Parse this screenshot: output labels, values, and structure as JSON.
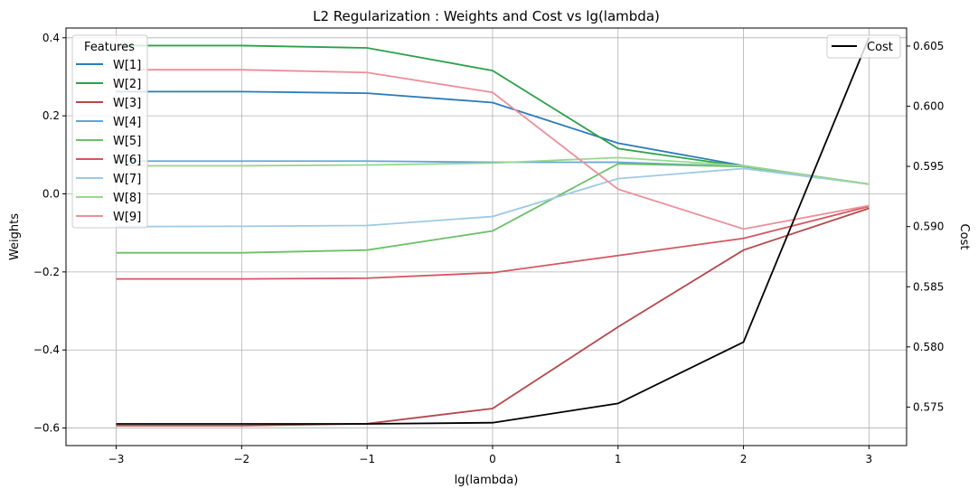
{
  "chart_data": {
    "type": "line",
    "title": "L2 Regularization : Weights and Cost vs lg(lambda)",
    "xlabel": "lg(lambda)",
    "ylabel": "Weights",
    "y2label": "Cost",
    "x": [
      -3,
      -2,
      -1,
      0,
      1,
      2,
      3
    ],
    "xlim": [
      -3.4,
      3.3
    ],
    "ylim": [
      -0.645,
      0.425
    ],
    "y2lim": [
      0.5718,
      0.6065
    ],
    "xticks": [
      -3,
      -2,
      -1,
      0,
      1,
      2,
      3
    ],
    "yticks": [
      -0.6,
      -0.4,
      -0.2,
      0.0,
      0.2,
      0.4
    ],
    "y2ticks": [
      0.575,
      0.58,
      0.585,
      0.59,
      0.595,
      0.6,
      0.605
    ],
    "grid": true,
    "legend_title": "Features",
    "legend_position": "top-left",
    "legend2_position": "top-right",
    "series": [
      {
        "name": "W[1]",
        "color": "#2b7bba",
        "values": [
          0.262,
          0.262,
          0.258,
          0.234,
          0.13,
          0.072,
          0.025
        ]
      },
      {
        "name": "W[2]",
        "color": "#2ca14a",
        "values": [
          0.38,
          0.38,
          0.374,
          0.316,
          0.116,
          0.07,
          0.025
        ]
      },
      {
        "name": "W[3]",
        "color": "#b5474b",
        "values": [
          -0.594,
          -0.594,
          -0.589,
          -0.55,
          -0.341,
          -0.144,
          -0.037
        ]
      },
      {
        "name": "W[4]",
        "color": "#63a6d8",
        "values": [
          0.084,
          0.084,
          0.084,
          0.081,
          0.081,
          0.07,
          0.025
        ]
      },
      {
        "name": "W[5]",
        "color": "#6cc068",
        "values": [
          -0.151,
          -0.151,
          -0.144,
          -0.095,
          0.077,
          0.07,
          0.025
        ]
      },
      {
        "name": "W[6]",
        "color": "#d65560",
        "values": [
          -0.218,
          -0.218,
          -0.216,
          -0.202,
          -0.158,
          -0.114,
          -0.032
        ]
      },
      {
        "name": "W[7]",
        "color": "#9ecae6",
        "values": [
          -0.084,
          -0.083,
          -0.081,
          -0.058,
          0.039,
          0.065,
          0.025
        ]
      },
      {
        "name": "W[8]",
        "color": "#98d88e",
        "values": [
          0.072,
          0.072,
          0.074,
          0.079,
          0.093,
          0.072,
          0.025
        ]
      },
      {
        "name": "W[9]",
        "color": "#ea9099",
        "values": [
          0.318,
          0.318,
          0.311,
          0.26,
          0.012,
          -0.09,
          -0.03
        ]
      }
    ],
    "series2": [
      {
        "name": "Cost",
        "color": "#000000",
        "axis": "right",
        "values": [
          0.5736,
          0.5736,
          0.5736,
          0.5737,
          0.5753,
          0.5804,
          0.6057
        ]
      }
    ]
  }
}
